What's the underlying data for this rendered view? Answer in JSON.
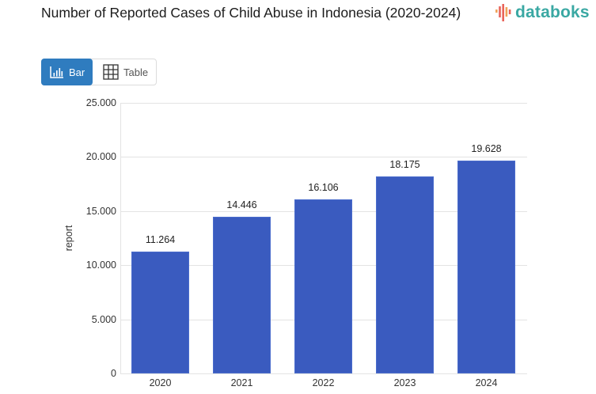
{
  "header": {
    "title": "Number of Reported Cases of Child Abuse in Indonesia (2020-2024)",
    "logo_text": "databoks"
  },
  "toggle": {
    "bar_label": "Bar",
    "table_label": "Table",
    "active": "Bar"
  },
  "colors": {
    "bar": "#3a5bbf",
    "toggle_active": "#2f7cbf",
    "logo_text": "#3aa8a3",
    "logo_bars": [
      "#f0a35a",
      "#e8645a",
      "#e8645a",
      "#f0a35a",
      "#e8645a"
    ]
  },
  "axis": {
    "ylabel": "report",
    "yticks": [
      "0",
      "5.000",
      "10.000",
      "15.000",
      "20.000",
      "25.000"
    ],
    "xticks": [
      "2020",
      "2021",
      "2022",
      "2023",
      "2024"
    ]
  },
  "bars": [
    {
      "label": "11.264",
      "year": "2020"
    },
    {
      "label": "14.446",
      "year": "2021"
    },
    {
      "label": "16.106",
      "year": "2022"
    },
    {
      "label": "18.175",
      "year": "2023"
    },
    {
      "label": "19.628",
      "year": "2024"
    }
  ],
  "chart_data": {
    "type": "bar",
    "title": "Number of Reported Cases of Child Abuse in Indonesia (2020-2024)",
    "categories": [
      "2020",
      "2021",
      "2022",
      "2023",
      "2024"
    ],
    "values": [
      11264,
      14446,
      16106,
      18175,
      19628
    ],
    "data_labels": [
      "11.264",
      "14.446",
      "16.106",
      "18.175",
      "19.628"
    ],
    "xlabel": "",
    "ylabel": "report",
    "ylim": [
      0,
      25000
    ],
    "yticks": [
      0,
      5000,
      10000,
      15000,
      20000,
      25000
    ],
    "grid": true,
    "legend": "none",
    "series": [
      {
        "name": "report",
        "values": [
          11264,
          14446,
          16106,
          18175,
          19628
        ],
        "color": "#3a5bbf"
      }
    ]
  }
}
